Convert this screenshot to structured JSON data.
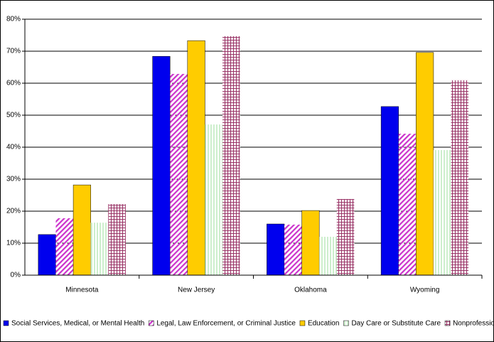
{
  "chart_data": {
    "type": "bar",
    "categories": [
      "Minnesota",
      "New Jersey",
      "Oklahoma",
      "Wyoming"
    ],
    "series": [
      {
        "name": "Social Services, Medical, or Mental Health",
        "color": "#0000ee",
        "fill_pattern": "solid",
        "values": [
          12.7,
          68.4,
          16.0,
          52.7
        ]
      },
      {
        "name": "Legal, Law Enforcement, or Criminal Justice",
        "color": "#cc33cc",
        "fill_pattern": "diagonal",
        "values": [
          17.8,
          62.9,
          15.8,
          44.2
        ]
      },
      {
        "name": "Education",
        "color": "#ffcc00",
        "fill_pattern": "solid",
        "values": [
          28.2,
          73.3,
          20.2,
          69.6
        ]
      },
      {
        "name": "Day Care or Substitute Care",
        "color": "#99dd99",
        "fill_pattern": "vertical",
        "values": [
          16.4,
          47.1,
          12.0,
          39.1
        ]
      },
      {
        "name": "Nonprofessional",
        "color": "#993366",
        "fill_pattern": "grid",
        "values": [
          22.2,
          74.7,
          23.8,
          60.9
        ]
      }
    ],
    "ylim": [
      0,
      80
    ],
    "yticks": [
      {
        "value": 0,
        "label": "0%"
      },
      {
        "value": 10,
        "label": "10%"
      },
      {
        "value": 20,
        "label": "20%"
      },
      {
        "value": 30,
        "label": "30%"
      },
      {
        "value": 40,
        "label": "40%"
      },
      {
        "value": 50,
        "label": "50%"
      },
      {
        "value": 60,
        "label": "60%"
      },
      {
        "value": 70,
        "label": "70%"
      },
      {
        "value": 80,
        "label": "80%"
      }
    ],
    "grid": true,
    "legend": "bottom"
  }
}
